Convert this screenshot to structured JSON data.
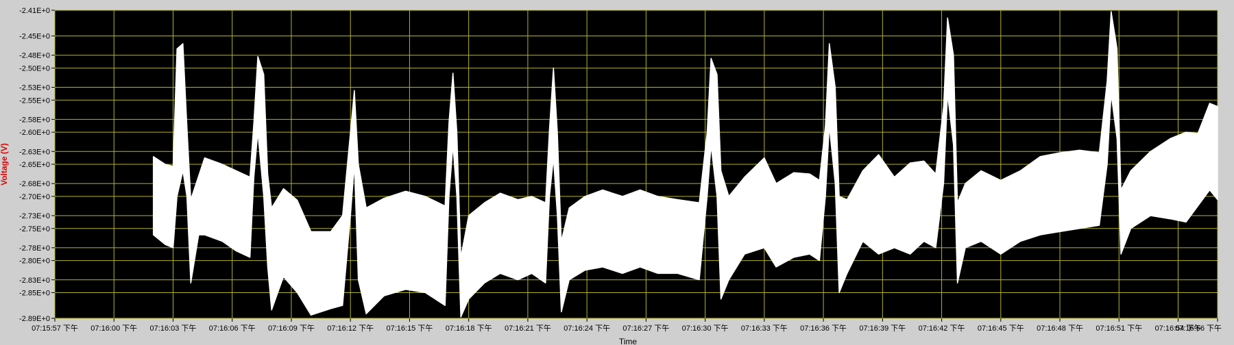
{
  "chart_data": {
    "type": "line",
    "ylabel": "Voltage (V)",
    "xlabel": "Time",
    "ylim": [
      -2.89,
      -2.41
    ],
    "y_ticks": [
      "-2.41E+0",
      "-2.45E+0",
      "-2.48E+0",
      "-2.50E+0",
      "-2.53E+0",
      "-2.55E+0",
      "-2.58E+0",
      "-2.60E+0",
      "-2.63E+0",
      "-2.65E+0",
      "-2.68E+0",
      "-2.70E+0",
      "-2.73E+0",
      "-2.75E+0",
      "-2.78E+0",
      "-2.80E+0",
      "-2.83E+0",
      "-2.85E+0",
      "-2.89E+0"
    ],
    "y_tick_values": [
      -2.41,
      -2.45,
      -2.48,
      -2.5,
      -2.53,
      -2.55,
      -2.58,
      -2.6,
      -2.63,
      -2.65,
      -2.68,
      -2.7,
      -2.73,
      -2.75,
      -2.78,
      -2.8,
      -2.83,
      -2.85,
      -2.89
    ],
    "x_ticks": [
      "07:15:57 下午",
      "07:16:00 下午",
      "07:16:03 下午",
      "07:16:06 下午",
      "07:16:09 下午",
      "07:16:12 下午",
      "07:16:15 下午",
      "07:16:18 下午",
      "07:16:21 下午",
      "07:16:24 下午",
      "07:16:27 下午",
      "07:16:30 下午",
      "07:16:33 下午",
      "07:16:36 下午",
      "07:16:39 下午",
      "07:16:42 下午",
      "07:16:45 下午",
      "07:16:48 下午",
      "07:16:51 下午",
      "07:16:54 下午",
      "07:16:56 下午"
    ],
    "x_tick_values": [
      0,
      3,
      6,
      9,
      12,
      15,
      18,
      21,
      24,
      27,
      30,
      33,
      36,
      39,
      42,
      45,
      48,
      51,
      54,
      57,
      59
    ],
    "xlim": [
      0,
      59
    ],
    "grid": true,
    "colors": {
      "plot_bg": "#000000",
      "grid": "#b5b52a",
      "series": "#ffffff",
      "ylabel": "#e00000",
      "frame": "#cfcfcf"
    },
    "series": [
      {
        "envelope_upper": [
          [
            5.0,
            -2.638
          ],
          [
            5.6,
            -2.65
          ],
          [
            6.0,
            -2.653
          ],
          [
            6.2,
            -2.47
          ],
          [
            6.5,
            -2.462
          ],
          [
            6.7,
            -2.59
          ],
          [
            6.9,
            -2.705
          ],
          [
            7.3,
            -2.668
          ],
          [
            7.6,
            -2.64
          ],
          [
            8.5,
            -2.65
          ],
          [
            9.2,
            -2.66
          ],
          [
            9.9,
            -2.67
          ],
          [
            10.1,
            -2.585
          ],
          [
            10.3,
            -2.482
          ],
          [
            10.6,
            -2.51
          ],
          [
            10.8,
            -2.665
          ],
          [
            11.0,
            -2.718
          ],
          [
            11.6,
            -2.688
          ],
          [
            12.3,
            -2.706
          ],
          [
            13.0,
            -2.755
          ],
          [
            14.0,
            -2.755
          ],
          [
            14.6,
            -2.73
          ],
          [
            15.0,
            -2.6
          ],
          [
            15.2,
            -2.535
          ],
          [
            15.4,
            -2.65
          ],
          [
            15.8,
            -2.718
          ],
          [
            16.7,
            -2.703
          ],
          [
            17.8,
            -2.692
          ],
          [
            18.8,
            -2.7
          ],
          [
            19.8,
            -2.715
          ],
          [
            20.0,
            -2.585
          ],
          [
            20.2,
            -2.508
          ],
          [
            20.4,
            -2.6
          ],
          [
            20.6,
            -2.795
          ],
          [
            21.0,
            -2.73
          ],
          [
            21.8,
            -2.71
          ],
          [
            22.6,
            -2.695
          ],
          [
            23.5,
            -2.705
          ],
          [
            24.2,
            -2.7
          ],
          [
            24.9,
            -2.71
          ],
          [
            25.1,
            -2.595
          ],
          [
            25.3,
            -2.5
          ],
          [
            25.5,
            -2.6
          ],
          [
            25.7,
            -2.77
          ],
          [
            26.1,
            -2.718
          ],
          [
            26.9,
            -2.7
          ],
          [
            27.8,
            -2.69
          ],
          [
            28.8,
            -2.7
          ],
          [
            29.7,
            -2.69
          ],
          [
            30.6,
            -2.7
          ],
          [
            31.6,
            -2.705
          ],
          [
            32.7,
            -2.71
          ],
          [
            33.1,
            -2.6
          ],
          [
            33.3,
            -2.485
          ],
          [
            33.6,
            -2.51
          ],
          [
            33.8,
            -2.66
          ],
          [
            34.2,
            -2.7
          ],
          [
            35.0,
            -2.67
          ],
          [
            36.0,
            -2.64
          ],
          [
            36.6,
            -2.68
          ],
          [
            37.5,
            -2.663
          ],
          [
            38.3,
            -2.665
          ],
          [
            38.8,
            -2.675
          ],
          [
            39.1,
            -2.59
          ],
          [
            39.3,
            -2.462
          ],
          [
            39.6,
            -2.53
          ],
          [
            39.8,
            -2.7
          ],
          [
            40.2,
            -2.705
          ],
          [
            41.0,
            -2.66
          ],
          [
            41.8,
            -2.635
          ],
          [
            42.6,
            -2.67
          ],
          [
            43.4,
            -2.648
          ],
          [
            44.1,
            -2.645
          ],
          [
            44.7,
            -2.665
          ],
          [
            45.1,
            -2.56
          ],
          [
            45.3,
            -2.422
          ],
          [
            45.6,
            -2.48
          ],
          [
            45.8,
            -2.71
          ],
          [
            46.2,
            -2.68
          ],
          [
            47.0,
            -2.66
          ],
          [
            48.0,
            -2.675
          ],
          [
            49.0,
            -2.66
          ],
          [
            50.0,
            -2.638
          ],
          [
            51.0,
            -2.632
          ],
          [
            52.0,
            -2.628
          ],
          [
            53.0,
            -2.632
          ],
          [
            53.4,
            -2.52
          ],
          [
            53.6,
            -2.412
          ],
          [
            53.9,
            -2.47
          ],
          [
            54.1,
            -2.69
          ],
          [
            54.6,
            -2.66
          ],
          [
            55.6,
            -2.63
          ],
          [
            56.6,
            -2.61
          ],
          [
            57.4,
            -2.6
          ],
          [
            58.0,
            -2.602
          ],
          [
            58.6,
            -2.555
          ],
          [
            59.0,
            -2.56
          ]
        ],
        "envelope_lower": [
          [
            5.0,
            -2.76
          ],
          [
            5.6,
            -2.775
          ],
          [
            6.0,
            -2.78
          ],
          [
            6.2,
            -2.7
          ],
          [
            6.5,
            -2.66
          ],
          [
            6.7,
            -2.7
          ],
          [
            6.9,
            -2.835
          ],
          [
            7.3,
            -2.76
          ],
          [
            7.6,
            -2.76
          ],
          [
            8.5,
            -2.77
          ],
          [
            9.2,
            -2.785
          ],
          [
            9.9,
            -2.795
          ],
          [
            10.1,
            -2.67
          ],
          [
            10.3,
            -2.6
          ],
          [
            10.6,
            -2.7
          ],
          [
            10.8,
            -2.81
          ],
          [
            11.0,
            -2.877
          ],
          [
            11.6,
            -2.825
          ],
          [
            12.3,
            -2.85
          ],
          [
            13.0,
            -2.885
          ],
          [
            14.0,
            -2.875
          ],
          [
            14.6,
            -2.87
          ],
          [
            15.0,
            -2.73
          ],
          [
            15.2,
            -2.65
          ],
          [
            15.4,
            -2.83
          ],
          [
            15.8,
            -2.883
          ],
          [
            16.7,
            -2.855
          ],
          [
            17.8,
            -2.845
          ],
          [
            18.8,
            -2.85
          ],
          [
            19.8,
            -2.87
          ],
          [
            20.0,
            -2.7
          ],
          [
            20.2,
            -2.62
          ],
          [
            20.4,
            -2.7
          ],
          [
            20.6,
            -2.888
          ],
          [
            21.0,
            -2.86
          ],
          [
            21.8,
            -2.835
          ],
          [
            22.6,
            -2.82
          ],
          [
            23.5,
            -2.83
          ],
          [
            24.2,
            -2.82
          ],
          [
            24.9,
            -2.835
          ],
          [
            25.1,
            -2.7
          ],
          [
            25.3,
            -2.64
          ],
          [
            25.5,
            -2.73
          ],
          [
            25.7,
            -2.88
          ],
          [
            26.1,
            -2.83
          ],
          [
            26.9,
            -2.815
          ],
          [
            27.8,
            -2.81
          ],
          [
            28.8,
            -2.82
          ],
          [
            29.7,
            -2.81
          ],
          [
            30.6,
            -2.82
          ],
          [
            31.6,
            -2.82
          ],
          [
            32.7,
            -2.83
          ],
          [
            33.1,
            -2.7
          ],
          [
            33.3,
            -2.62
          ],
          [
            33.6,
            -2.7
          ],
          [
            33.8,
            -2.86
          ],
          [
            34.2,
            -2.83
          ],
          [
            35.0,
            -2.79
          ],
          [
            36.0,
            -2.78
          ],
          [
            36.6,
            -2.81
          ],
          [
            37.5,
            -2.795
          ],
          [
            38.3,
            -2.79
          ],
          [
            38.8,
            -2.8
          ],
          [
            39.1,
            -2.7
          ],
          [
            39.3,
            -2.59
          ],
          [
            39.6,
            -2.68
          ],
          [
            39.8,
            -2.85
          ],
          [
            40.2,
            -2.82
          ],
          [
            41.0,
            -2.77
          ],
          [
            41.8,
            -2.79
          ],
          [
            42.6,
            -2.78
          ],
          [
            43.4,
            -2.79
          ],
          [
            44.1,
            -2.77
          ],
          [
            44.7,
            -2.78
          ],
          [
            45.1,
            -2.68
          ],
          [
            45.3,
            -2.54
          ],
          [
            45.6,
            -2.62
          ],
          [
            45.8,
            -2.835
          ],
          [
            46.2,
            -2.78
          ],
          [
            47.0,
            -2.77
          ],
          [
            48.0,
            -2.79
          ],
          [
            49.0,
            -2.77
          ],
          [
            50.0,
            -2.76
          ],
          [
            51.0,
            -2.755
          ],
          [
            52.0,
            -2.75
          ],
          [
            53.0,
            -2.745
          ],
          [
            53.4,
            -2.65
          ],
          [
            53.6,
            -2.54
          ],
          [
            53.9,
            -2.61
          ],
          [
            54.1,
            -2.79
          ],
          [
            54.6,
            -2.75
          ],
          [
            55.6,
            -2.73
          ],
          [
            56.6,
            -2.735
          ],
          [
            57.4,
            -2.74
          ],
          [
            58.0,
            -2.715
          ],
          [
            58.6,
            -2.69
          ],
          [
            59.0,
            -2.705
          ]
        ]
      }
    ]
  }
}
